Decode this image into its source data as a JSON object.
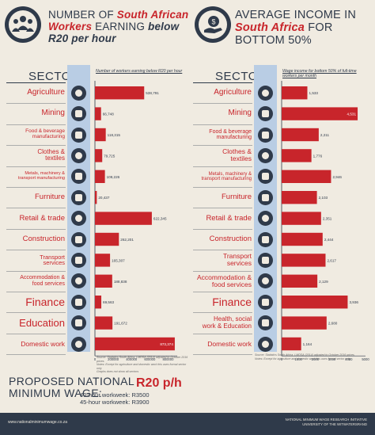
{
  "left_header": {
    "line1": "NUMBER OF",
    "line1_red": "South African",
    "line2_red": "Workers",
    "line2": "EARNING",
    "line2_ital": "below",
    "line3": "R20 per hour"
  },
  "right_header": {
    "line1": "AVERAGE INCOME IN",
    "line2_red": "South Africa",
    "line2": "FOR",
    "line3": "BOTTOM 50%"
  },
  "sector_header": "SECTOR",
  "left_col_note": "Number of workers earning below R20 per hour",
  "right_col_note": "Wage income for bottom 50% of full-time workers per month",
  "left_source": [
    "Source: Statistics South Africa, LMDSA (2014) adjusted to October 2016 prices",
    "Notes: Except for agriculture and domestic work this uses formal sector only",
    "Graphs does not show all sectors"
  ],
  "right_source": [
    "Source: Statistics South Africa, LMDSA (2014) adjusted to October 2016 prices",
    "Notes: Except for agriculture and domestic work this uses formal sector only"
  ],
  "icons": [
    "wheat-icon",
    "mining-helmet-icon",
    "cutlery-icon",
    "shirt-icon",
    "gears-icon",
    "chair-icon",
    "shopping-basket-icon",
    "hardhat-icon",
    "truck-icon",
    "fork-spoon-icon",
    "money-icon",
    "graduation-cap-icon",
    "broom-icon",
    "stethoscope-icon"
  ],
  "chart_data": [
    {
      "type": "bar",
      "orientation": "horizontal",
      "title": "Number of workers earning below R20 per hour",
      "categories": [
        "Agriculture",
        "Mining",
        "Food & beverage manufacturing",
        "Clothes & textiles",
        "Metals, machinery & transport manufacturing",
        "Furniture",
        "Retail & trade",
        "Construction",
        "Transport services",
        "Accommodation & food services",
        "Finance",
        "Education",
        "Domestic work"
      ],
      "values": [
        538791,
        66748,
        118315,
        79725,
        109226,
        20437,
        622345,
        262201,
        165307,
        188838,
        69563,
        191672,
        873374
      ],
      "value_labels": [
        "538,791",
        "66,748",
        "118,315",
        "79,725",
        "109,226",
        "20,437",
        "622,345",
        "262,201",
        "165,307",
        "188,838",
        "69,563",
        "191,672",
        "873,374"
      ],
      "xticks": [
        "0",
        "200000",
        "400000",
        "600000",
        "800000"
      ],
      "xlim": [
        0,
        900000
      ],
      "color": "#c8252b"
    },
    {
      "type": "bar",
      "orientation": "horizontal",
      "title": "Wage income for bottom 50% of full-time workers per month",
      "categories": [
        "Agriculture",
        "Mining",
        "Food & beverage manufacturing",
        "Clothes & textiles",
        "Metals, machinery & transport manufacturing",
        "Furniture",
        "Retail & trade",
        "Construction",
        "Transport services",
        "Accommodation & food services",
        "Finance",
        "Health, social work & Education",
        "Domestic work"
      ],
      "values": [
        1533,
        4531,
        2211,
        1776,
        2946,
        2103,
        2351,
        2444,
        2617,
        2129,
        3936,
        2680,
        1164
      ],
      "value_labels": [
        "1,533",
        "4,531",
        "2,211",
        "1,776",
        "2,946",
        "2,103",
        "2,351",
        "2,444",
        "2,617",
        "2,129",
        "3,936",
        "2,680",
        "1,164"
      ],
      "xticks": [
        "0",
        "1000",
        "2000",
        "3000",
        "4000",
        "5000"
      ],
      "xlim": [
        0,
        5000
      ],
      "color": "#c8252b"
    }
  ],
  "left_labels": [
    {
      "lines": [
        "Agriculture"
      ],
      "size": 10
    },
    {
      "lines": [
        "Mining"
      ],
      "size": 10
    },
    {
      "lines": [
        "Food & beverage",
        "manufacturing"
      ],
      "size": 6.5
    },
    {
      "lines": [
        "Clothes &",
        "textiles"
      ],
      "size": 8
    },
    {
      "lines": [
        "Metals, machinery &",
        "transport manufacturing"
      ],
      "size": 5.6
    },
    {
      "lines": [
        "Furniture"
      ],
      "size": 9.5
    },
    {
      "lines": [
        "Retail & trade"
      ],
      "size": 9.5
    },
    {
      "lines": [
        "Construction"
      ],
      "size": 9.5
    },
    {
      "lines": [
        "Transport",
        "services"
      ],
      "size": 7.5
    },
    {
      "lines": [
        "Accommodation &",
        "food services"
      ],
      "size": 7
    },
    {
      "lines": [
        "Finance"
      ],
      "size": 14
    },
    {
      "lines": [
        "Education"
      ],
      "size": 13
    },
    {
      "lines": [
        "Domestic work"
      ],
      "size": 8.5
    }
  ],
  "right_labels": [
    {
      "lines": [
        "Agriculture"
      ],
      "size": 10
    },
    {
      "lines": [
        "Mining"
      ],
      "size": 10
    },
    {
      "lines": [
        "Food & beverage",
        "manufacturing"
      ],
      "size": 7
    },
    {
      "lines": [
        "Clothes &",
        "textiles"
      ],
      "size": 8.5
    },
    {
      "lines": [
        "Metals, machinery &",
        "transport manufacturing"
      ],
      "size": 6
    },
    {
      "lines": [
        "Furniture"
      ],
      "size": 9.5
    },
    {
      "lines": [
        "Retail & trade"
      ],
      "size": 9.5
    },
    {
      "lines": [
        "Construction"
      ],
      "size": 9.5
    },
    {
      "lines": [
        "Transport",
        "services"
      ],
      "size": 8.5
    },
    {
      "lines": [
        "Accommodation &",
        "food services"
      ],
      "size": 8.5
    },
    {
      "lines": [
        "Finance"
      ],
      "size": 14
    },
    {
      "lines": [
        "Health, social",
        "work & Education"
      ],
      "size": 8
    },
    {
      "lines": [
        "Domestic work"
      ],
      "size": 8.5
    }
  ],
  "wage": {
    "title_line1": "PROPOSED NATIONAL",
    "title_line2": "MINIMUM WAGE:",
    "big": "R20 p/h",
    "line1": "40-hour workweek: R3500",
    "line2": "45-hour workweek: R3900"
  },
  "footer": {
    "site": "www.nationalminimumwage.co.za",
    "inst1": "NATIONAL MINIMUM WAGE RESEARCH INITIATIVE",
    "inst2": "UNIVERSITY OF THE WITWATERSRAND"
  }
}
